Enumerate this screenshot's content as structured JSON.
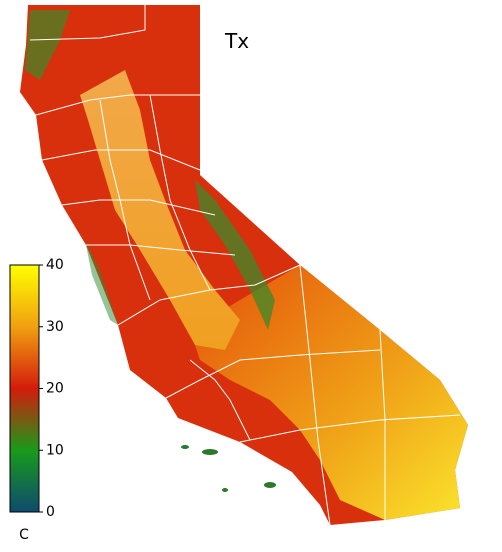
{
  "title": "Tx",
  "colorbar": {
    "lim": [
      0,
      40
    ],
    "ticks": [
      0,
      10,
      20,
      30,
      40
    ],
    "unit": "C"
  }
}
